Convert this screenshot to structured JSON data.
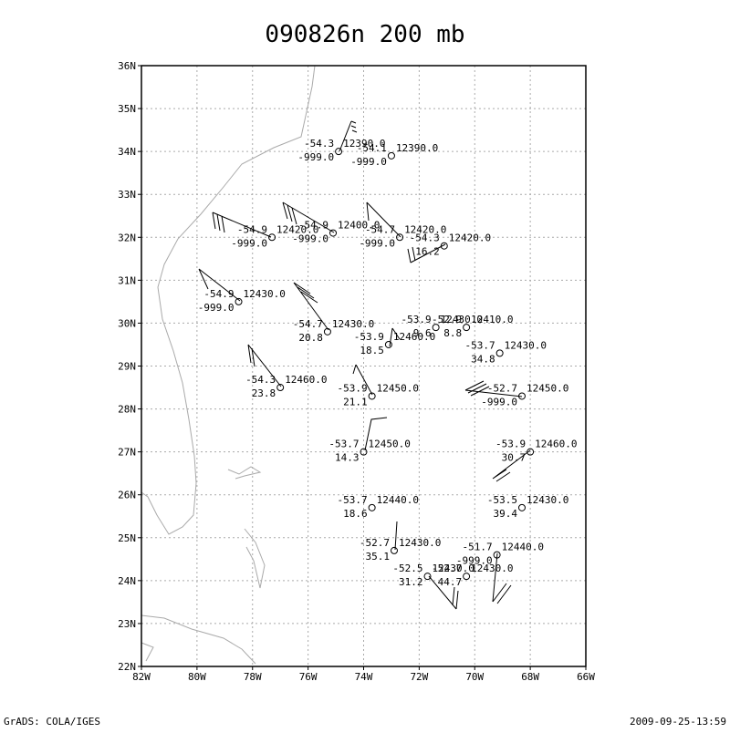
{
  "chart_data": {
    "type": "station",
    "title": "090826n 200 mb",
    "xlim": [
      -82,
      -66
    ],
    "ylim": [
      22,
      36
    ],
    "xticks": [
      {
        "value": -82,
        "label": "82W"
      },
      {
        "value": -80,
        "label": "80W"
      },
      {
        "value": -78,
        "label": "78W"
      },
      {
        "value": -76,
        "label": "76W"
      },
      {
        "value": -74,
        "label": "74W"
      },
      {
        "value": -72,
        "label": "72W"
      },
      {
        "value": -70,
        "label": "70W"
      },
      {
        "value": -68,
        "label": "68W"
      },
      {
        "value": -66,
        "label": "66W"
      }
    ],
    "yticks": [
      {
        "value": 22,
        "label": "22N"
      },
      {
        "value": 23,
        "label": "23N"
      },
      {
        "value": 24,
        "label": "24N"
      },
      {
        "value": 25,
        "label": "25N"
      },
      {
        "value": 26,
        "label": "26N"
      },
      {
        "value": 27,
        "label": "27N"
      },
      {
        "value": 28,
        "label": "28N"
      },
      {
        "value": 29,
        "label": "29N"
      },
      {
        "value": 30,
        "label": "30N"
      },
      {
        "value": 31,
        "label": "31N"
      },
      {
        "value": 32,
        "label": "32N"
      },
      {
        "value": 33,
        "label": "33N"
      },
      {
        "value": 34,
        "label": "34N"
      },
      {
        "value": 35,
        "label": "35N"
      },
      {
        "value": 36,
        "label": "36N"
      }
    ],
    "grid": true,
    "stations": [
      {
        "lon": -74.9,
        "lat": 34.0,
        "temp": "-54.3",
        "height": "12390.0",
        "dewp": "-999.0"
      },
      {
        "lon": -73.0,
        "lat": 33.9,
        "temp": "-54.1",
        "height": "12390.0",
        "dewp": "-999.0"
      },
      {
        "lon": -77.3,
        "lat": 32.0,
        "temp": "-54.9",
        "height": "12420.0",
        "dewp": "-999.0"
      },
      {
        "lon": -75.1,
        "lat": 32.1,
        "temp": "-54.9",
        "height": "12400.0",
        "dewp": "-999.0"
      },
      {
        "lon": -72.7,
        "lat": 32.0,
        "temp": "-54.7",
        "height": "12420.0",
        "dewp": "-999.0"
      },
      {
        "lon": -71.1,
        "lat": 31.8,
        "temp": "-54.3",
        "height": "12420.0",
        "dewp": "16.2"
      },
      {
        "lon": -78.5,
        "lat": 30.5,
        "temp": "-54.9",
        "height": "12430.0",
        "dewp": "-999.0"
      },
      {
        "lon": -75.3,
        "lat": 29.8,
        "temp": "-54.7",
        "height": "12430.0",
        "dewp": "20.8"
      },
      {
        "lon": -71.4,
        "lat": 29.9,
        "temp": "-53.9",
        "height": "12430.0",
        "dewp": "9.6"
      },
      {
        "lon": -70.3,
        "lat": 29.9,
        "temp": "-52.9",
        "height": "12410.0",
        "dewp": "8.8"
      },
      {
        "lon": -73.1,
        "lat": 29.5,
        "temp": "-53.9",
        "height": "12460.0",
        "dewp": "18.5"
      },
      {
        "lon": -69.1,
        "lat": 29.3,
        "temp": "-53.7",
        "height": "12430.0",
        "dewp": "34.8"
      },
      {
        "lon": -77.0,
        "lat": 28.5,
        "temp": "-54.3",
        "height": "12460.0",
        "dewp": "23.8"
      },
      {
        "lon": -73.7,
        "lat": 28.3,
        "temp": "-53.9",
        "height": "12450.0",
        "dewp": "21.1"
      },
      {
        "lon": -68.3,
        "lat": 28.3,
        "temp": "-52.7",
        "height": "12450.0",
        "dewp": "-999.0"
      },
      {
        "lon": -74.0,
        "lat": 27.0,
        "temp": "-53.7",
        "height": "12450.0",
        "dewp": "14.3"
      },
      {
        "lon": -68.0,
        "lat": 27.0,
        "temp": "-53.9",
        "height": "12460.0",
        "dewp": "30.7"
      },
      {
        "lon": -73.7,
        "lat": 25.7,
        "temp": "-53.7",
        "height": "12440.0",
        "dewp": "18.6"
      },
      {
        "lon": -68.3,
        "lat": 25.7,
        "temp": "-53.5",
        "height": "12430.0",
        "dewp": "39.4"
      },
      {
        "lon": -72.9,
        "lat": 24.7,
        "temp": "-52.7",
        "height": "12430.0",
        "dewp": "35.1"
      },
      {
        "lon": -69.2,
        "lat": 24.6,
        "temp": "-51.7",
        "height": "12440.0",
        "dewp": "-999.0"
      },
      {
        "lon": -71.7,
        "lat": 24.1,
        "temp": "-52.5",
        "height": "12430.0",
        "dewp": "31.2"
      },
      {
        "lon": -70.3,
        "lat": 24.1,
        "temp": "-52.7",
        "height": "12430.0",
        "dewp": "44.7"
      }
    ]
  },
  "footer": {
    "left": "GrADS: COLA/IGES",
    "right": "2009-09-25-13:59"
  }
}
